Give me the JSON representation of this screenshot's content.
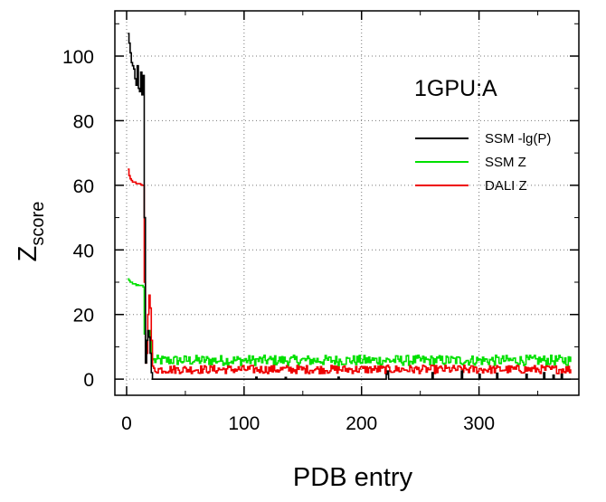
{
  "chart_data": {
    "type": "line",
    "annotation": "1GPU:A",
    "xlabel": "PDB entry",
    "ylabel_main": "Z",
    "ylabel_sub": "score",
    "xlim": [
      -10,
      385
    ],
    "ylim": [
      -5,
      114
    ],
    "xticks": [
      0,
      100,
      200,
      300
    ],
    "yticks": [
      0,
      20,
      40,
      60,
      80,
      100
    ],
    "grid": true,
    "legend_position": "top-right",
    "x_max_entry": 378,
    "series": [
      {
        "name": "SSM -lg(P)",
        "color": "#000000",
        "head": [
          [
            1,
            107
          ],
          [
            2,
            104
          ],
          [
            3,
            101
          ],
          [
            4,
            98
          ],
          [
            5,
            97
          ],
          [
            6,
            96
          ],
          [
            7,
            93
          ],
          [
            8,
            91
          ],
          [
            9,
            97
          ],
          [
            10,
            90
          ],
          [
            11,
            89
          ],
          [
            12,
            95
          ],
          [
            13,
            88
          ],
          [
            14,
            94
          ],
          [
            15,
            50
          ],
          [
            16,
            5
          ],
          [
            17,
            12
          ],
          [
            18,
            15
          ],
          [
            19,
            13
          ],
          [
            20,
            8
          ],
          [
            21,
            2
          ],
          [
            22,
            0
          ]
        ],
        "spikes": [
          [
            110,
            0.6
          ],
          [
            135,
            0.5
          ],
          [
            180,
            0.6
          ],
          [
            221,
            1.5
          ],
          [
            222,
            2.5
          ],
          [
            260,
            2.0
          ],
          [
            285,
            2.5
          ],
          [
            300,
            1.5
          ],
          [
            315,
            1.8
          ],
          [
            340,
            1.5
          ],
          [
            355,
            2.0
          ],
          [
            363,
            1.2
          ],
          [
            370,
            1.5
          ]
        ],
        "baseline": 0
      },
      {
        "name": "SSM Z",
        "color": "#00e000",
        "head": [
          [
            1,
            31
          ],
          [
            2,
            30.5
          ],
          [
            3,
            30
          ],
          [
            4,
            30
          ],
          [
            5,
            29.5
          ],
          [
            6,
            29.5
          ],
          [
            7,
            29.5
          ],
          [
            8,
            29
          ],
          [
            9,
            29.2
          ],
          [
            10,
            29
          ],
          [
            11,
            29
          ],
          [
            12,
            29
          ],
          [
            13,
            29
          ],
          [
            14,
            28.5
          ],
          [
            15,
            14
          ],
          [
            16,
            10
          ],
          [
            17,
            12
          ],
          [
            18,
            14
          ],
          [
            19,
            15
          ],
          [
            20,
            12
          ],
          [
            21,
            8
          ],
          [
            22,
            6
          ]
        ],
        "tail_mean": 5.8,
        "tail_amplitude": 1.6
      },
      {
        "name": "DALI Z",
        "color": "#ee0000",
        "head": [
          [
            1,
            65
          ],
          [
            2,
            63
          ],
          [
            3,
            62
          ],
          [
            4,
            61.5
          ],
          [
            5,
            61
          ],
          [
            6,
            61
          ],
          [
            7,
            61
          ],
          [
            8,
            60.5
          ],
          [
            9,
            60.5
          ],
          [
            10,
            60.5
          ],
          [
            11,
            60.5
          ],
          [
            12,
            60.2
          ],
          [
            13,
            60
          ],
          [
            14,
            60
          ],
          [
            15,
            30
          ],
          [
            16,
            5
          ],
          [
            17,
            8
          ],
          [
            18,
            20
          ],
          [
            19,
            26
          ],
          [
            20,
            22
          ],
          [
            21,
            12
          ],
          [
            22,
            4
          ]
        ],
        "tail_mean": 3.0,
        "tail_amplitude": 1.3
      }
    ]
  }
}
